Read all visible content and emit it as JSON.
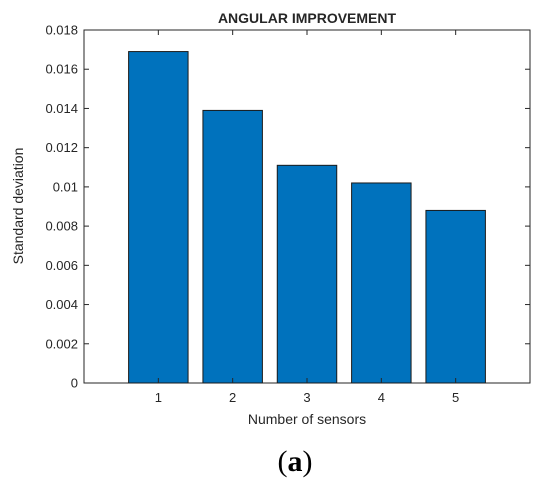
{
  "chart_data": {
    "type": "bar",
    "title": "ANGULAR IMPROVEMENT",
    "xlabel": "Number of sensors",
    "ylabel": "Standard deviation",
    "categories": [
      "1",
      "2",
      "3",
      "4",
      "5"
    ],
    "values": [
      0.0169,
      0.0139,
      0.0111,
      0.0102,
      0.0088
    ],
    "ylim": [
      0,
      0.018
    ],
    "yticks": [
      0,
      0.002,
      0.004,
      0.006,
      0.008,
      0.01,
      0.012,
      0.014,
      0.016,
      0.018
    ],
    "ytick_labels": [
      "0",
      "0.002",
      "0.004",
      "0.006",
      "0.008",
      "0.01",
      "0.012",
      "0.014",
      "0.016",
      "0.018"
    ],
    "grid": false,
    "legend": "none",
    "bar_color": "#0072BD",
    "bar_edge_color": "#1a1a1a"
  },
  "caption": {
    "open_paren": "(",
    "letter": "a",
    "close_paren": ")"
  }
}
